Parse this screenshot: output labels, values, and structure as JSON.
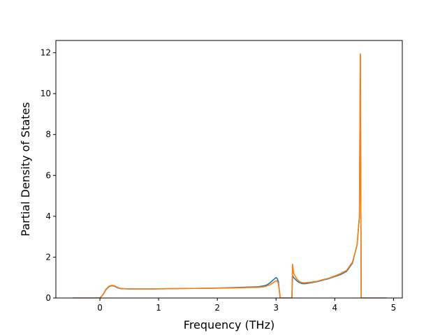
{
  "chart_data": {
    "type": "line",
    "title": "",
    "xlabel": "Frequency (THz)",
    "ylabel": "Partial Density of States",
    "xlim": [
      -0.75,
      5.15
    ],
    "ylim": [
      0,
      12.6
    ],
    "xticks": [
      0,
      1,
      2,
      3,
      4,
      5
    ],
    "yticks": [
      0,
      2,
      4,
      6,
      8,
      10,
      12
    ],
    "grid": false,
    "legend": "none",
    "series": [
      {
        "color": "#1f77b4",
        "x": [
          -0.46,
          0.0,
          0.05,
          0.1,
          0.15,
          0.2,
          0.25,
          0.3,
          0.35,
          0.45,
          0.6,
          0.8,
          1.0,
          1.3,
          1.6,
          1.9,
          2.2,
          2.5,
          2.7,
          2.8,
          2.85,
          2.9,
          2.95,
          3.0,
          3.02,
          3.04,
          3.07,
          3.1,
          3.15,
          3.2,
          3.24,
          3.27,
          3.28,
          3.3,
          3.35,
          3.4,
          3.45,
          3.5,
          3.6,
          3.7,
          3.8,
          3.9,
          4.0,
          4.1,
          4.2,
          4.3,
          4.38,
          4.42,
          4.435,
          4.45,
          4.46,
          4.5,
          4.6,
          4.88
        ],
        "y": [
          0,
          0,
          0.15,
          0.4,
          0.55,
          0.6,
          0.58,
          0.5,
          0.46,
          0.45,
          0.44,
          0.44,
          0.45,
          0.46,
          0.47,
          0.48,
          0.5,
          0.53,
          0.55,
          0.6,
          0.65,
          0.75,
          0.88,
          1.0,
          0.95,
          0.8,
          0,
          0,
          0,
          0,
          0,
          0,
          1.1,
          1.0,
          0.85,
          0.75,
          0.7,
          0.7,
          0.75,
          0.8,
          0.88,
          0.95,
          1.05,
          1.15,
          1.3,
          1.7,
          2.6,
          4.0,
          11.9,
          0,
          0,
          0,
          0,
          0
        ]
      },
      {
        "color": "#ff7f0e",
        "x": [
          -0.46,
          0.0,
          0.05,
          0.1,
          0.15,
          0.2,
          0.25,
          0.3,
          0.35,
          0.45,
          0.6,
          0.8,
          1.0,
          1.3,
          1.6,
          1.9,
          2.2,
          2.5,
          2.7,
          2.8,
          2.85,
          2.9,
          2.95,
          3.0,
          3.02,
          3.04,
          3.07,
          3.1,
          3.15,
          3.2,
          3.24,
          3.27,
          3.28,
          3.3,
          3.35,
          3.4,
          3.45,
          3.5,
          3.6,
          3.7,
          3.8,
          3.9,
          4.0,
          4.1,
          4.2,
          4.3,
          4.38,
          4.42,
          4.435,
          4.45,
          4.46,
          4.5,
          4.6,
          4.88
        ],
        "y": [
          0,
          0,
          0.15,
          0.42,
          0.57,
          0.62,
          0.6,
          0.52,
          0.47,
          0.45,
          0.44,
          0.44,
          0.45,
          0.46,
          0.47,
          0.48,
          0.49,
          0.51,
          0.52,
          0.55,
          0.6,
          0.65,
          0.75,
          0.85,
          0.82,
          0.7,
          0,
          0,
          0,
          0,
          0,
          0,
          1.65,
          1.2,
          0.95,
          0.8,
          0.75,
          0.75,
          0.78,
          0.82,
          0.9,
          0.97,
          1.08,
          1.2,
          1.35,
          1.75,
          2.6,
          4.0,
          11.95,
          0,
          0,
          0,
          0,
          0
        ]
      }
    ]
  }
}
